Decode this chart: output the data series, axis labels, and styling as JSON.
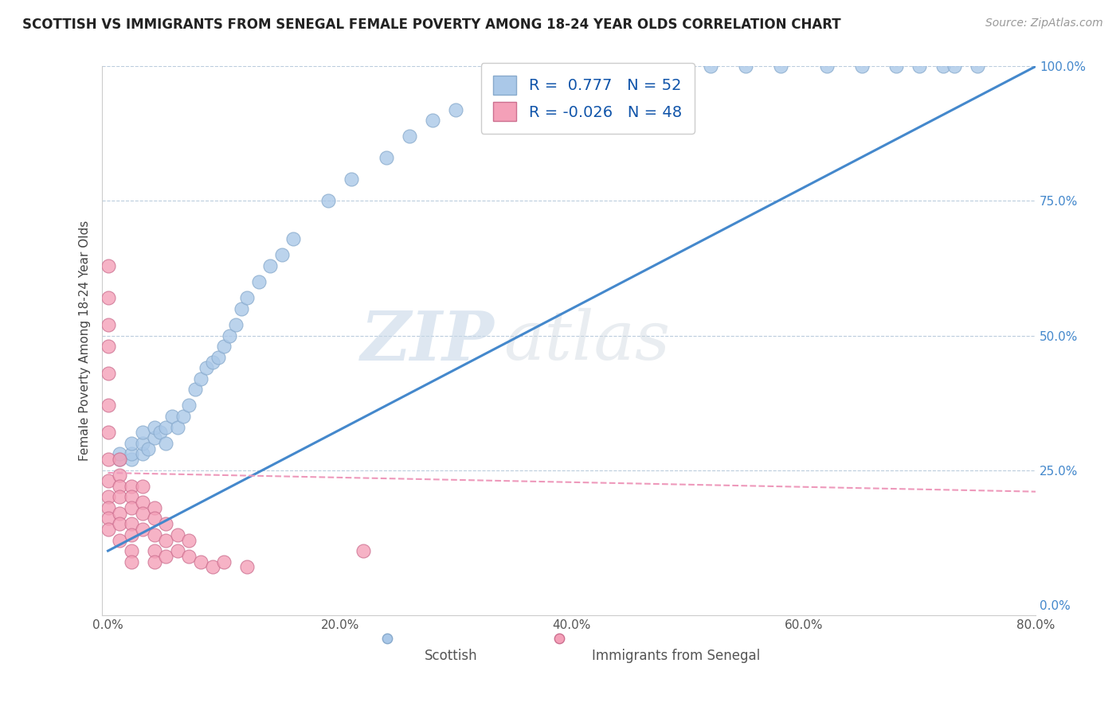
{
  "title": "SCOTTISH VS IMMIGRANTS FROM SENEGAL FEMALE POVERTY AMONG 18-24 YEAR OLDS CORRELATION CHART",
  "source": "Source: ZipAtlas.com",
  "ylabel": "Female Poverty Among 18-24 Year Olds",
  "xlim": [
    -0.005,
    0.8
  ],
  "ylim": [
    -0.02,
    1.0
  ],
  "xticks": [
    0.0,
    0.2,
    0.4,
    0.6,
    0.8
  ],
  "yticks": [
    0.0,
    0.25,
    0.5,
    0.75,
    1.0
  ],
  "xtick_labels": [
    "0.0%",
    "20.0%",
    "40.0%",
    "60.0%",
    "80.0%"
  ],
  "ytick_labels": [
    "0.0%",
    "25.0%",
    "50.0%",
    "75.0%",
    "100.0%"
  ],
  "background_color": "#ffffff",
  "grid_color": "#bbccdd",
  "watermark_zip": "ZIP",
  "watermark_atlas": "atlas",
  "legend_R1": "0.777",
  "legend_N1": "52",
  "legend_R2": "-0.026",
  "legend_N2": "48",
  "scottish_color": "#aac8e8",
  "scottish_edge": "#88aacc",
  "senegal_color": "#f4a0b8",
  "senegal_edge": "#cc7090",
  "trend_blue": "#4488cc",
  "trend_pink": "#ee99bb",
  "scottish_x": [
    0.01,
    0.01,
    0.02,
    0.02,
    0.02,
    0.03,
    0.03,
    0.03,
    0.035,
    0.04,
    0.04,
    0.045,
    0.05,
    0.05,
    0.055,
    0.06,
    0.065,
    0.07,
    0.075,
    0.08,
    0.085,
    0.09,
    0.095,
    0.1,
    0.105,
    0.11,
    0.115,
    0.12,
    0.13,
    0.14,
    0.15,
    0.16,
    0.19,
    0.21,
    0.24,
    0.26,
    0.28,
    0.3,
    0.34,
    0.37,
    0.44,
    0.49,
    0.52,
    0.55,
    0.58,
    0.62,
    0.65,
    0.68,
    0.7,
    0.72,
    0.73,
    0.75
  ],
  "scottish_y": [
    0.27,
    0.28,
    0.27,
    0.28,
    0.3,
    0.28,
    0.3,
    0.32,
    0.29,
    0.31,
    0.33,
    0.32,
    0.3,
    0.33,
    0.35,
    0.33,
    0.35,
    0.37,
    0.4,
    0.42,
    0.44,
    0.45,
    0.46,
    0.48,
    0.5,
    0.52,
    0.55,
    0.57,
    0.6,
    0.63,
    0.65,
    0.68,
    0.75,
    0.79,
    0.83,
    0.87,
    0.9,
    0.92,
    0.95,
    0.97,
    1.0,
    1.0,
    1.0,
    1.0,
    1.0,
    1.0,
    1.0,
    1.0,
    1.0,
    1.0,
    1.0,
    1.0
  ],
  "senegal_x": [
    0.0,
    0.0,
    0.0,
    0.0,
    0.0,
    0.0,
    0.0,
    0.0,
    0.0,
    0.0,
    0.0,
    0.0,
    0.0,
    0.01,
    0.01,
    0.01,
    0.01,
    0.01,
    0.01,
    0.01,
    0.02,
    0.02,
    0.02,
    0.02,
    0.02,
    0.02,
    0.02,
    0.03,
    0.03,
    0.03,
    0.03,
    0.04,
    0.04,
    0.04,
    0.04,
    0.04,
    0.05,
    0.05,
    0.05,
    0.06,
    0.06,
    0.07,
    0.07,
    0.08,
    0.09,
    0.1,
    0.12,
    0.22
  ],
  "senegal_y": [
    0.63,
    0.57,
    0.52,
    0.48,
    0.43,
    0.37,
    0.32,
    0.27,
    0.23,
    0.2,
    0.18,
    0.16,
    0.14,
    0.27,
    0.24,
    0.22,
    0.2,
    0.17,
    0.15,
    0.12,
    0.22,
    0.2,
    0.18,
    0.15,
    0.13,
    0.1,
    0.08,
    0.22,
    0.19,
    0.17,
    0.14,
    0.18,
    0.16,
    0.13,
    0.1,
    0.08,
    0.15,
    0.12,
    0.09,
    0.13,
    0.1,
    0.12,
    0.09,
    0.08,
    0.07,
    0.08,
    0.07,
    0.1
  ],
  "blue_trend_x0": 0.0,
  "blue_trend_y0": 0.1,
  "blue_trend_x1": 0.8,
  "blue_trend_y1": 1.0,
  "pink_trend_x0": 0.0,
  "pink_trend_y0": 0.245,
  "pink_trend_x1": 0.8,
  "pink_trend_y1": 0.21
}
